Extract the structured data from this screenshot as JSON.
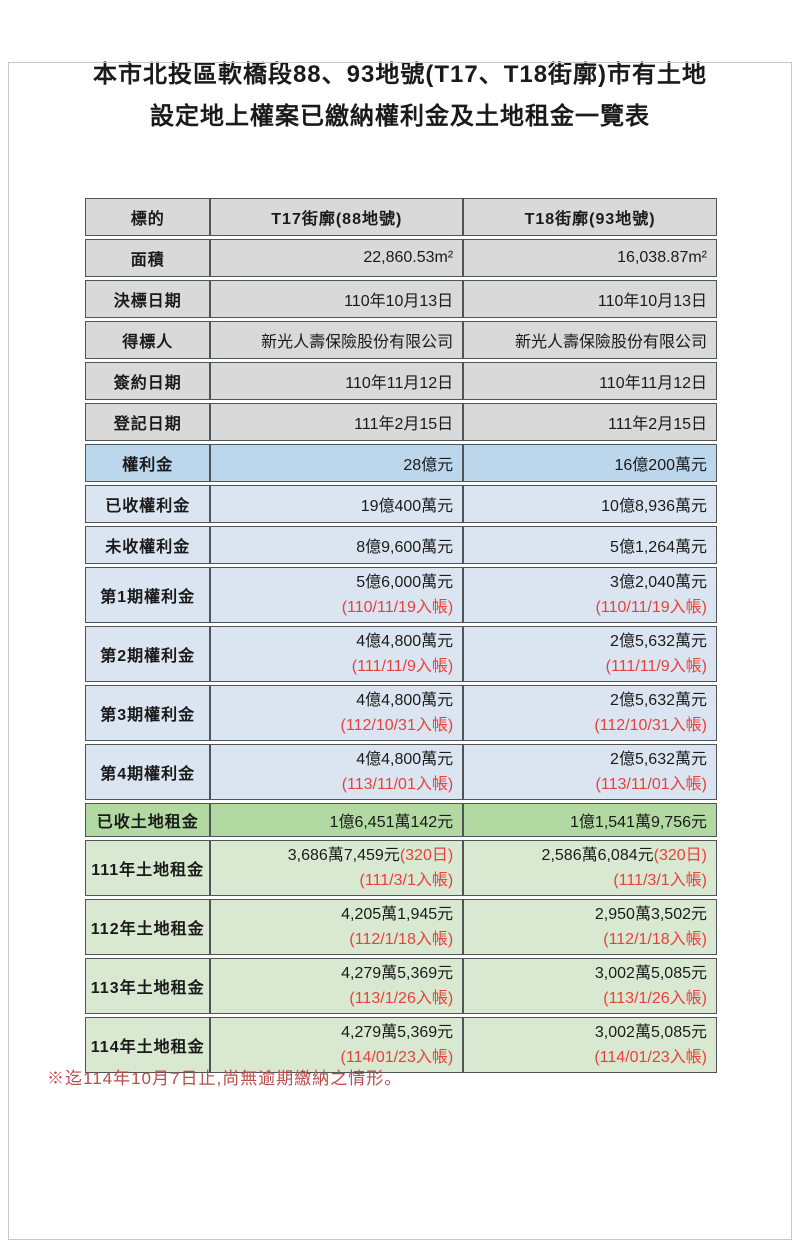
{
  "title": {
    "line1": "本市北投區軟橋段88、93地號(T17、T18街廓)市有土地",
    "line2": "設定地上權案已繳納權利金及土地租金一覽表"
  },
  "table": {
    "header": {
      "label": "標的",
      "t17": "T17街廓(88地號)",
      "t18": "T18街廓(93地號)"
    },
    "rows": [
      {
        "label": "面積",
        "style": "gray",
        "size": "s",
        "t17": {
          "main": "22,860.53m²"
        },
        "t18": {
          "main": "16,038.87m²"
        }
      },
      {
        "label": "決標日期",
        "style": "gray",
        "size": "s",
        "t17": {
          "main": "110年10月13日"
        },
        "t18": {
          "main": "110年10月13日"
        }
      },
      {
        "label": "得標人",
        "style": "gray",
        "size": "s",
        "t17": {
          "main": "新光人壽保險股份有限公司"
        },
        "t18": {
          "main": "新光人壽保險股份有限公司"
        }
      },
      {
        "label": "簽約日期",
        "style": "gray",
        "size": "s",
        "t17": {
          "main": "110年11月12日"
        },
        "t18": {
          "main": "110年11月12日"
        }
      },
      {
        "label": "登記日期",
        "style": "gray",
        "size": "s",
        "t17": {
          "main": "111年2月15日"
        },
        "t18": {
          "main": "111年2月15日"
        }
      },
      {
        "label": "權利金",
        "style": "blue-strong",
        "size": "s",
        "t17": {
          "main": "28億元"
        },
        "t18": {
          "main": "16億200萬元"
        }
      },
      {
        "label": "已收權利金",
        "style": "blue",
        "size": "s",
        "t17": {
          "main": "19億400萬元"
        },
        "t18": {
          "main": "10億8,936萬元"
        }
      },
      {
        "label": "未收權利金",
        "style": "blue",
        "size": "s",
        "t17": {
          "main": "8億9,600萬元"
        },
        "t18": {
          "main": "5億1,264萬元"
        }
      },
      {
        "label": "第1期權利金",
        "style": "blue",
        "size": "d",
        "t17": {
          "main": "5億6,000萬元",
          "note": "(110/11/19入帳)"
        },
        "t18": {
          "main": "3億2,040萬元",
          "note": "(110/11/19入帳)"
        }
      },
      {
        "label": "第2期權利金",
        "style": "blue",
        "size": "d",
        "t17": {
          "main": "4億4,800萬元",
          "note": "(111/11/9入帳)"
        },
        "t18": {
          "main": "2億5,632萬元",
          "note": "(111/11/9入帳)"
        }
      },
      {
        "label": "第3期權利金",
        "style": "blue",
        "size": "d",
        "t17": {
          "main": "4億4,800萬元",
          "note": "(112/10/31入帳)"
        },
        "t18": {
          "main": "2億5,632萬元",
          "note": "(112/10/31入帳)"
        }
      },
      {
        "label": "第4期權利金",
        "style": "blue",
        "size": "d",
        "t17": {
          "main": "4億4,800萬元",
          "note": "(113/11/01入帳)"
        },
        "t18": {
          "main": "2億5,632萬元",
          "note": "(113/11/01入帳)"
        }
      },
      {
        "label": "已收土地租金",
        "style": "green-strong",
        "size": "g",
        "t17": {
          "main": "1億6,451萬142元"
        },
        "t18": {
          "main": "1億1,541萬9,756元"
        }
      },
      {
        "label": "111年土地租金",
        "style": "green",
        "size": "d",
        "t17": {
          "main": "3,686萬7,459元",
          "red_suffix": "(320日)",
          "note": "(111/3/1入帳)"
        },
        "t18": {
          "main": "2,586萬6,084元",
          "red_suffix": "(320日)",
          "note": "(111/3/1入帳)"
        }
      },
      {
        "label": "112年土地租金",
        "style": "green",
        "size": "d",
        "t17": {
          "main": "4,205萬1,945元",
          "note": "(112/1/18入帳)"
        },
        "t18": {
          "main": "2,950萬3,502元",
          "note": "(112/1/18入帳)"
        }
      },
      {
        "label": "113年土地租金",
        "style": "green",
        "size": "d",
        "t17": {
          "main": "4,279萬5,369元",
          "note": "(113/1/26入帳)"
        },
        "t18": {
          "main": "3,002萬5,085元",
          "note": "(113/1/26入帳)"
        }
      },
      {
        "label": "114年土地租金",
        "style": "green",
        "size": "d",
        "t17": {
          "main": "4,279萬5,369元",
          "note": "(114/01/23入帳)"
        },
        "t18": {
          "main": "3,002萬5,085元",
          "note": "(114/01/23入帳)"
        }
      }
    ]
  },
  "footnote": "※迄114年10月7日止,尚無逾期繳納之情形。",
  "colors": {
    "row_gray": "#d9d9d9",
    "row_blue_strong": "#bcd6ec",
    "row_blue": "#dbe5f1",
    "row_green_strong": "#b2d9a2",
    "row_green": "#d9e9d1",
    "cell_red_text": "#e8413c",
    "footnote_red": "#bb4b47",
    "border": "#4f5458"
  }
}
